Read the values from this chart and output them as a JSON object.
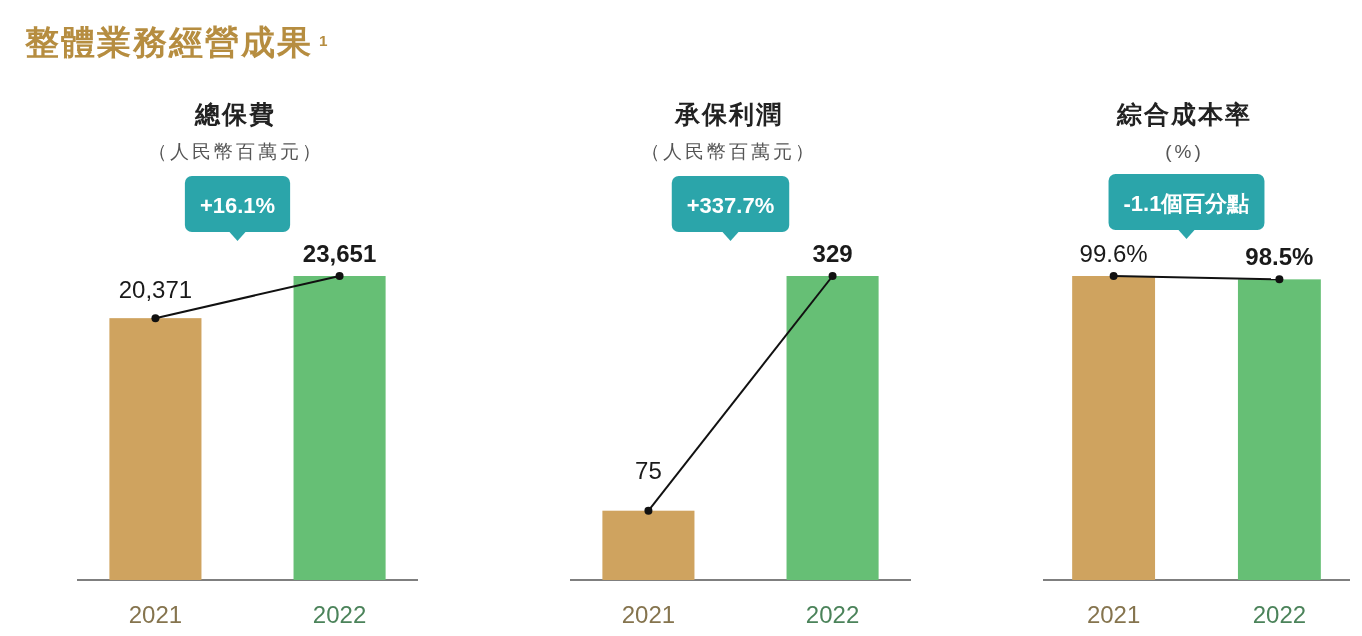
{
  "chart_data": [
    {
      "type": "other",
      "title": "整體業務經營成果$^{1}$"
    },
    {
      "type": "bar",
      "title": "總保費",
      "subtitle": "（人民幣百萬元）",
      "categories": [
        "2021",
        "2022"
      ],
      "series": [
        {
          "type": "bar",
          "values": [
            20371,
            23651
          ],
          "colors": [
            "#cfa35f",
            "#66bf75"
          ],
          "value_labels": [
            "20,371",
            "23,651"
          ]
        },
        {
          "type": "line",
          "values": [
            20371,
            23651
          ],
          "color": "#111111",
          "marker": "circle"
        }
      ],
      "annotations": [
        "+16.1%"
      ]
    },
    {
      "type": "bar",
      "title": "承保利潤",
      "subtitle": "（人民幣百萬元）",
      "categories": [
        "2021",
        "2022"
      ],
      "series": [
        {
          "type": "bar",
          "values": [
            75,
            329
          ],
          "colors": [
            "#cfa35f",
            "#66bf75"
          ],
          "value_labels": [
            "75",
            "329"
          ]
        },
        {
          "type": "line",
          "values": [
            75,
            329
          ],
          "color": "#111111",
          "marker": "circle"
        }
      ],
      "annotations": [
        "+337.7%"
      ]
    },
    {
      "type": "bar",
      "title": "綜合成本率",
      "subtitle": "(%)",
      "categories": [
        "2021",
        "2022"
      ],
      "series": [
        {
          "type": "bar",
          "values": [
            99.6,
            98.5
          ],
          "colors": [
            "#cfa35f",
            "#66bf75"
          ],
          "value_labels": [
            "99.6%",
            "98.5%"
          ]
        },
        {
          "type": "line",
          "values": [
            99.6,
            98.5
          ],
          "color": "#111111",
          "marker": "circle"
        }
      ],
      "annotations": [
        "-1.1個百分點"
      ]
    }
  ]
}
